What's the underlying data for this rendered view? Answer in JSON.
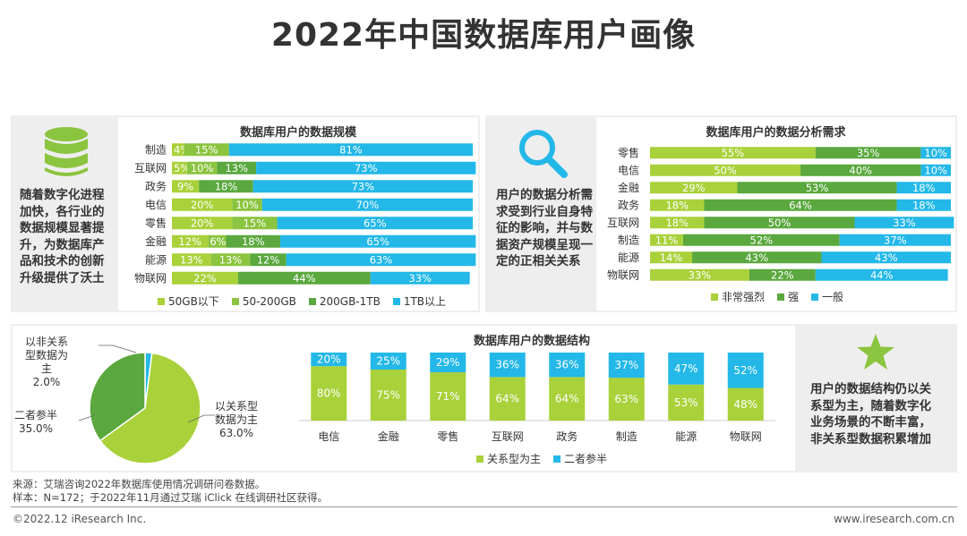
{
  "page": {
    "title": "2022年中国数据库用户画像"
  },
  "colors": {
    "lime": "#a9d13a",
    "light_green": "#8bc43f",
    "green": "#5aa83e",
    "cyan": "#23b8e8",
    "panel_bg": "#eeeeee",
    "star": "#8bc43f",
    "icon_blue": "#23b8e8"
  },
  "panel1": {
    "icon": "database-icon",
    "text": "随着数字化进程加快，各行业的数据规模显著提升，为数据库产品和技术的创新升级提供了沃土"
  },
  "panel2": {
    "icon": "magnifier-icon",
    "text": "用户的数据分析需求受到行业自身特征的影响，并与数据资产规模呈现一定的正相关关系"
  },
  "panel3": {
    "icon": "star-icon",
    "text": "用户的数据结构仍以关系型为主，随着数字化业务场景的不断丰富，非关系型数据积累增加"
  },
  "chart_data": [
    {
      "id": "scale",
      "type": "bar",
      "orientation": "horizontal-stacked-100",
      "title": "数据库用户的数据规模",
      "categories": [
        "制造",
        "互联网",
        "政务",
        "电信",
        "零售",
        "金融",
        "能源",
        "物联网"
      ],
      "series": [
        {
          "name": "50GB以下",
          "color": "#a9d13a",
          "values": [
            4,
            5,
            9,
            20,
            20,
            12,
            13,
            22
          ]
        },
        {
          "name": "50-200GB",
          "color": "#8bc43f",
          "values": [
            15,
            10,
            0,
            10,
            15,
            6,
            13,
            0
          ]
        },
        {
          "name": "200GB-1TB",
          "color": "#5aa83e",
          "values": [
            0,
            13,
            18,
            0,
            0,
            18,
            12,
            44
          ]
        },
        {
          "name": "1TB以上",
          "color": "#23b8e8",
          "values": [
            81,
            73,
            73,
            70,
            65,
            65,
            63,
            33
          ]
        }
      ],
      "legend_position": "bottom"
    },
    {
      "id": "analysis",
      "type": "bar",
      "orientation": "horizontal-stacked-100",
      "title": "数据库用户的数据分析需求",
      "categories": [
        "零售",
        "电信",
        "金融",
        "政务",
        "互联网",
        "制造",
        "能源",
        "物联网"
      ],
      "series": [
        {
          "name": "非常强烈",
          "color": "#a9d13a",
          "values": [
            55,
            50,
            29,
            18,
            18,
            11,
            14,
            33
          ]
        },
        {
          "name": "强",
          "color": "#5aa83e",
          "values": [
            35,
            40,
            53,
            64,
            50,
            52,
            43,
            22
          ]
        },
        {
          "name": "一般",
          "color": "#23b8e8",
          "values": [
            10,
            10,
            18,
            18,
            33,
            37,
            43,
            44
          ]
        }
      ],
      "legend_position": "bottom"
    },
    {
      "id": "pie",
      "type": "pie",
      "slices": [
        {
          "label": "以关系型数据为主",
          "value": 63.0,
          "display": "63.0%",
          "color": "#a9d13a"
        },
        {
          "label": "二者参半",
          "value": 35.0,
          "display": "35.0%",
          "color": "#5aa83e"
        },
        {
          "label": "以非关系型数据为主",
          "value": 2.0,
          "display": "2.0%",
          "color": "#23b8e8"
        }
      ],
      "slice_labels": [
        {
          "lines": [
            "以关系型",
            "数据为主",
            "63.0%"
          ]
        },
        {
          "lines": [
            "二者参半",
            "35.0%"
          ]
        },
        {
          "lines": [
            "以非关系",
            "型数据为",
            "主",
            "2.0%"
          ]
        }
      ]
    },
    {
      "id": "structure",
      "type": "bar",
      "orientation": "vertical-stacked-100",
      "title": "数据库用户的数据结构",
      "categories": [
        "电信",
        "金融",
        "零售",
        "互联网",
        "政务",
        "制造",
        "能源",
        "物联网"
      ],
      "series": [
        {
          "name": "关系型为主",
          "color": "#a9d13a",
          "values": [
            80,
            75,
            71,
            64,
            64,
            63,
            53,
            48
          ]
        },
        {
          "name": "二者参半",
          "color": "#23b8e8",
          "values": [
            20,
            25,
            29,
            36,
            36,
            37,
            47,
            52
          ]
        }
      ],
      "legend_position": "bottom"
    }
  ],
  "footer": {
    "source": "来源：艾瑞咨询2022年数据库使用情况调研问卷数据。",
    "sample": "样本：N=172；于2022年11月通过艾瑞 iClick 在线调研社区获得。",
    "copyright": "©2022.12 iResearch Inc.",
    "website": "www.iresearch.com.cn"
  }
}
